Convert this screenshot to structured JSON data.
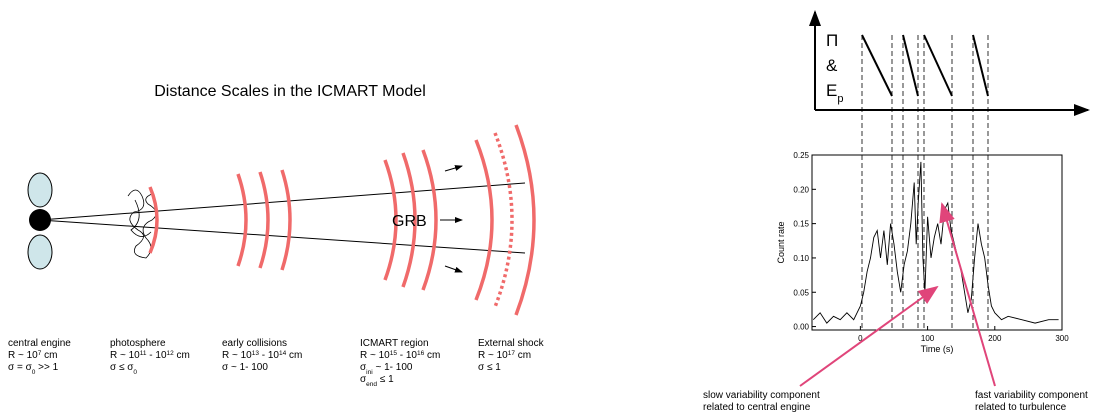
{
  "diagram": {
    "title": "Distance Scales in the ICMART Model",
    "grb_label": "GRB",
    "regions": [
      {
        "lines": [
          [
            {
              "text": "central engine"
            }
          ],
          [
            {
              "text": "R ~ 10"
            },
            {
              "sup": "7"
            },
            {
              "text": " cm"
            }
          ],
          [
            {
              "text": "σ = σ"
            },
            {
              "sub": "0"
            },
            {
              "text": " >> 1"
            }
          ]
        ]
      },
      {
        "lines": [
          [
            {
              "text": "photosphere"
            }
          ],
          [
            {
              "text": "R ~ 10"
            },
            {
              "sup": "11"
            },
            {
              "text": " - 10"
            },
            {
              "sup": "12"
            },
            {
              "text": " cm"
            }
          ],
          [
            {
              "text": "σ ≤ σ"
            },
            {
              "sub": "0"
            }
          ]
        ]
      },
      {
        "lines": [
          [
            {
              "text": "early collisions"
            }
          ],
          [
            {
              "text": "R ~ 10"
            },
            {
              "sup": "13"
            },
            {
              "text": " - 10"
            },
            {
              "sup": "14"
            },
            {
              "text": " cm"
            }
          ],
          [
            {
              "text": "σ ~ 1- 100"
            }
          ]
        ]
      },
      {
        "lines": [
          [
            {
              "text": "ICMART region"
            }
          ],
          [
            {
              "text": "R ~ 10"
            },
            {
              "sup": "15"
            },
            {
              "text": " - 10"
            },
            {
              "sup": "16"
            },
            {
              "text": " cm"
            }
          ],
          [
            {
              "text": "σ"
            },
            {
              "sub": "ini"
            },
            {
              "text": " ~ 1- 100"
            }
          ],
          [
            {
              "text": "σ"
            },
            {
              "sub": "end"
            },
            {
              "text": " ≤ 1"
            }
          ]
        ]
      },
      {
        "lines": [
          [
            {
              "text": "External shock"
            }
          ],
          [
            {
              "text": "R ~ 10"
            },
            {
              "sup": "17"
            },
            {
              "text": " cm"
            }
          ],
          [
            {
              "text": "σ ≤ 1"
            }
          ]
        ]
      }
    ]
  },
  "panel_label": [
    [
      {
        "text": "Π"
      }
    ],
    [
      {
        "text": "&"
      }
    ],
    [
      {
        "text": "E"
      },
      {
        "sub": "p"
      }
    ]
  ],
  "annotations": [
    {
      "lines": [
        "slow variability component",
        "related to central engine"
      ]
    },
    {
      "lines": [
        "fast variability component",
        "related to turbulence"
      ]
    }
  ],
  "chart_data": {
    "type": "line",
    "xlabel": "Time (s)",
    "ylabel": "Count rate",
    "xlim": [
      -72,
      300
    ],
    "ylim": [
      -0.005,
      0.25
    ],
    "xticks": [
      0,
      100,
      200,
      300
    ],
    "yticks": [
      {
        "value": 0,
        "label": "0.00"
      },
      0.05,
      {
        "value": 0.1,
        "label": "0.10"
      },
      0.15,
      {
        "value": 0.2,
        "label": "0.20"
      },
      0.25
    ],
    "color": "#000000",
    "x": [
      -70,
      -60,
      -50,
      -40,
      -30,
      -20,
      -10,
      0,
      5,
      10,
      15,
      20,
      25,
      30,
      35,
      40,
      45,
      50,
      55,
      60,
      65,
      70,
      75,
      80,
      83,
      86,
      90,
      93,
      96,
      100,
      105,
      110,
      115,
      120,
      125,
      130,
      135,
      140,
      145,
      150,
      155,
      160,
      165,
      170,
      175,
      180,
      185,
      190,
      195,
      200,
      210,
      220,
      240,
      260,
      280,
      295
    ],
    "values": [
      0.01,
      0.02,
      0.005,
      0.015,
      0.01,
      0.02,
      0.01,
      0.03,
      0.05,
      0.08,
      0.1,
      0.13,
      0.14,
      0.1,
      0.14,
      0.09,
      0.15,
      0.12,
      0.08,
      0.05,
      0.09,
      0.11,
      0.15,
      0.21,
      0.12,
      0.18,
      0.24,
      0.1,
      0.05,
      0.16,
      0.1,
      0.13,
      0.15,
      0.12,
      0.17,
      0.18,
      0.14,
      0.12,
      0.1,
      0.08,
      0.05,
      0.02,
      0.04,
      0.1,
      0.15,
      0.12,
      0.1,
      0.06,
      0.03,
      0.02,
      0.01,
      0.015,
      0.01,
      0.005,
      0.01,
      0.01
    ]
  }
}
